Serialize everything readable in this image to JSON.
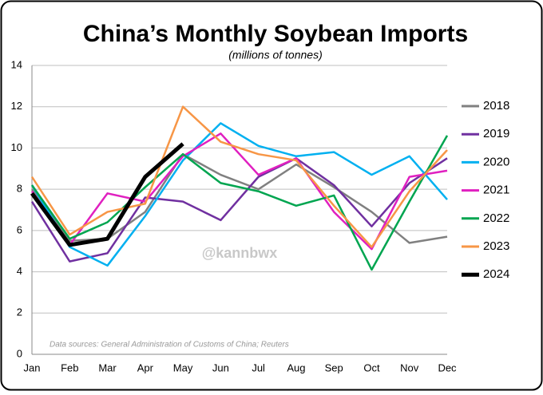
{
  "chart_data": {
    "type": "line",
    "title": "China’s Monthly Soybean Imports",
    "subtitle": "(millions of tonnes)",
    "watermark": "@kannbwx",
    "source": "Data sources: General Administration of Customs of China; Reuters",
    "categories": [
      "Jan",
      "Feb",
      "Mar",
      "Apr",
      "May",
      "Jun",
      "Jul",
      "Aug",
      "Sep",
      "Oct",
      "Nov",
      "Dec"
    ],
    "ylim": [
      0,
      14
    ],
    "yticks": [
      0,
      2,
      4,
      6,
      8,
      10,
      12,
      14
    ],
    "grid": true,
    "legend": "right",
    "series": [
      {
        "name": "2018",
        "color": "#808080",
        "values": [
          8.0,
          5.5,
          5.6,
          6.9,
          9.7,
          8.7,
          8.0,
          9.2,
          8.1,
          6.9,
          5.4,
          5.7
        ]
      },
      {
        "name": "2019",
        "color": "#7030a0",
        "values": [
          7.4,
          4.5,
          4.9,
          7.6,
          7.4,
          6.5,
          8.6,
          9.5,
          8.2,
          6.2,
          8.3,
          9.5
        ]
      },
      {
        "name": "2020",
        "color": "#00b0f0",
        "values": [
          8.2,
          5.2,
          4.3,
          6.7,
          9.4,
          11.2,
          10.1,
          9.6,
          9.8,
          8.7,
          9.6,
          7.5
        ]
      },
      {
        "name": "2021",
        "color": "#e020c0",
        "values": [
          7.9,
          5.3,
          7.8,
          7.4,
          9.6,
          10.7,
          8.7,
          9.5,
          6.9,
          5.1,
          8.6,
          8.9
        ]
      },
      {
        "name": "2022",
        "color": "#00a550",
        "values": [
          8.2,
          5.6,
          6.4,
          8.1,
          9.7,
          8.3,
          7.9,
          7.2,
          7.7,
          4.1,
          7.4,
          10.6
        ]
      },
      {
        "name": "2023",
        "color": "#f79646",
        "values": [
          8.6,
          5.8,
          6.9,
          7.3,
          12.0,
          10.3,
          9.7,
          9.4,
          7.2,
          5.2,
          7.9,
          9.9
        ]
      },
      {
        "name": "2024",
        "color": "#000000",
        "values": [
          7.8,
          5.3,
          5.6,
          8.6,
          10.2,
          null,
          null,
          null,
          null,
          null,
          null,
          null
        ]
      }
    ]
  }
}
